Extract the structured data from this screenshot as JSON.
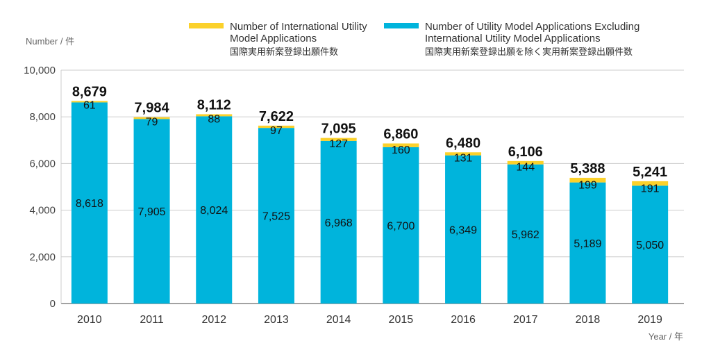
{
  "chart_data": {
    "type": "bar",
    "stacked": true,
    "categories": [
      "2010",
      "2011",
      "2012",
      "2013",
      "2014",
      "2015",
      "2016",
      "2017",
      "2018",
      "2019"
    ],
    "series": [
      {
        "name": "Number of Utility Model Applications Excluding International Utility Model  Applications",
        "name_jp": "国際実用新案登録出願を除く実用新案登録出願件数",
        "color": "#00b4dc",
        "values": [
          8618,
          7905,
          8024,
          7525,
          6968,
          6700,
          6349,
          5962,
          5189,
          5050
        ]
      },
      {
        "name": "Number of International Utility Model Applications",
        "name_jp": "国際実用新案登録出願件数",
        "color": "#fbd12b",
        "values": [
          61,
          79,
          88,
          97,
          127,
          160,
          131,
          144,
          199,
          191
        ]
      }
    ],
    "totals": [
      8679,
      7984,
      8112,
      7622,
      7095,
      6860,
      6480,
      6106,
      5388,
      5241
    ],
    "ylabel": "Number / 件",
    "xlabel": "Year / 年",
    "ylim": [
      0,
      10000
    ],
    "yticks": [
      0,
      2000,
      4000,
      6000,
      8000,
      10000
    ],
    "ytick_labels": [
      "0",
      "2,000",
      "4,000",
      "6,000",
      "8,000",
      "10,000"
    ],
    "grid": true,
    "legend_position": "top"
  }
}
